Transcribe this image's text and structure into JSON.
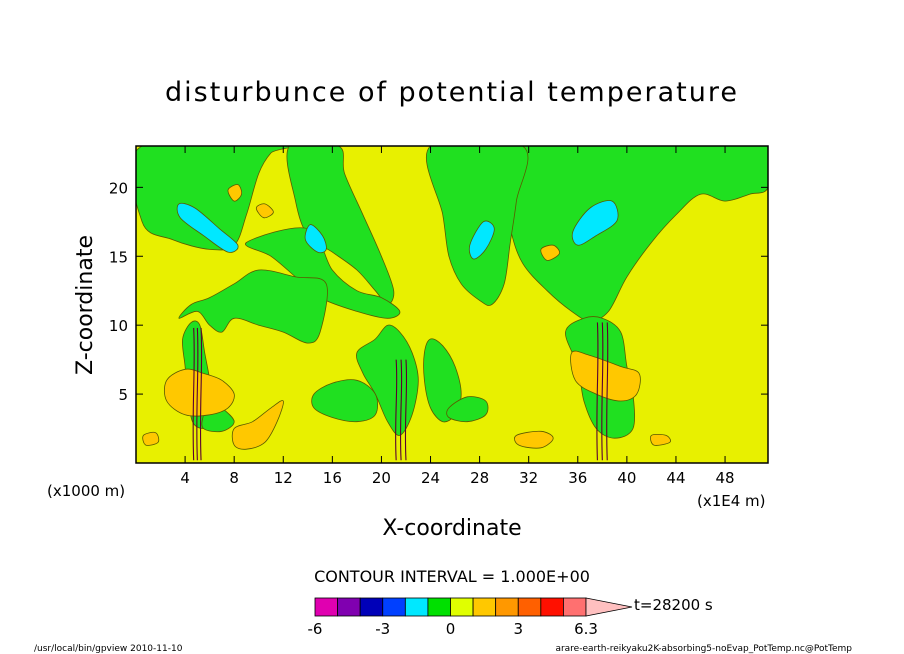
{
  "chart_data": {
    "type": "heatmap",
    "title": "disturbunce of potential temperature",
    "xlabel": "X-coordinate",
    "ylabel": "Z-coordinate",
    "x_unit_left": "(x1000 m)",
    "x_unit_right": "(x1E4 m)",
    "xlim": [
      0,
      51.5
    ],
    "ylim": [
      0,
      23
    ],
    "x_ticks": [
      4,
      8,
      12,
      16,
      20,
      24,
      28,
      32,
      36,
      40,
      44,
      48
    ],
    "y_ticks": [
      5,
      10,
      15,
      20
    ],
    "contour_interval_label": "CONTOUR INTERVAL = 1.000E+00",
    "time_label": "t=28200 s",
    "colorbar": {
      "colors": [
        "#e000b0",
        "#8000b0",
        "#0000b8",
        "#0040ff",
        "#00e8ff",
        "#00e000",
        "#e0ff00",
        "#ffc800",
        "#ff9800",
        "#ff6000",
        "#ff1000",
        "#ff7070",
        "#ffc0c0"
      ],
      "tick_labels": [
        "-6",
        "-3",
        "0",
        "3",
        "6.3"
      ]
    },
    "background_level_color": "#e8f000",
    "green_regions": [
      {
        "name": "upper-left-band",
        "pts": [
          [
            0.5,
            23
          ],
          [
            0.5,
            17.5
          ],
          [
            3,
            16.2
          ],
          [
            6,
            15.5
          ],
          [
            8,
            15.8
          ],
          [
            9,
            18
          ],
          [
            10,
            21
          ],
          [
            11,
            22.5
          ],
          [
            12,
            23
          ]
        ]
      },
      {
        "name": "upper-mid-left",
        "pts": [
          [
            12.5,
            23
          ],
          [
            13,
            19
          ],
          [
            14,
            16.5
          ],
          [
            16,
            15.3
          ],
          [
            18,
            14
          ],
          [
            19.5,
            12.5
          ],
          [
            20.5,
            11.5
          ],
          [
            21,
            12.5
          ],
          [
            20,
            15
          ],
          [
            18.5,
            18
          ],
          [
            17,
            21
          ],
          [
            16.5,
            23
          ]
        ]
      },
      {
        "name": "plume-left-arm",
        "pts": [
          [
            14,
            17
          ],
          [
            16,
            14
          ],
          [
            18,
            12.5
          ],
          [
            20,
            12
          ],
          [
            21.5,
            11
          ],
          [
            20.5,
            10.5
          ],
          [
            18,
            11
          ],
          [
            15,
            12
          ],
          [
            13,
            13.5
          ],
          [
            11,
            15
          ],
          [
            9,
            16
          ]
        ]
      },
      {
        "name": "upper-right-band",
        "pts": [
          [
            29,
            23
          ],
          [
            30,
            20
          ],
          [
            30.5,
            17
          ],
          [
            31.5,
            14.5
          ],
          [
            33.5,
            12.5
          ],
          [
            35.5,
            11
          ],
          [
            37,
            10.3
          ],
          [
            38.5,
            11
          ],
          [
            40,
            13.5
          ],
          [
            42,
            16
          ],
          [
            44,
            18
          ],
          [
            46,
            19.5
          ],
          [
            48,
            19
          ],
          [
            50,
            19.5
          ],
          [
            51.5,
            20
          ],
          [
            51.5,
            23
          ]
        ]
      },
      {
        "name": "upper-mid-right",
        "pts": [
          [
            24,
            23
          ],
          [
            25,
            18
          ],
          [
            25.5,
            15
          ],
          [
            26.5,
            13
          ],
          [
            28,
            11.8
          ],
          [
            29,
            11.5
          ],
          [
            30,
            13
          ],
          [
            30.5,
            16
          ],
          [
            31,
            19
          ],
          [
            31.5,
            23
          ]
        ]
      },
      {
        "name": "lower-left-cloud",
        "pts": [
          [
            3.5,
            10.5
          ],
          [
            5,
            11
          ],
          [
            6,
            10
          ],
          [
            7,
            9.5
          ],
          [
            8,
            10.5
          ],
          [
            10,
            10
          ],
          [
            12,
            9.5
          ],
          [
            14,
            8.7
          ],
          [
            15,
            9.5
          ],
          [
            15.5,
            13
          ],
          [
            13,
            13.5
          ],
          [
            10,
            14
          ],
          [
            8,
            13
          ],
          [
            6,
            12
          ],
          [
            4.5,
            11.5
          ]
        ]
      },
      {
        "name": "central-left-column",
        "pts": [
          [
            18,
            8
          ],
          [
            19.5,
            9
          ],
          [
            20.5,
            10
          ],
          [
            21.5,
            9.5
          ],
          [
            22.5,
            8
          ],
          [
            23,
            6
          ],
          [
            22.5,
            3.5
          ],
          [
            21.5,
            2
          ],
          [
            20.5,
            3
          ],
          [
            19.5,
            5
          ],
          [
            18.5,
            6.5
          ]
        ]
      },
      {
        "name": "central-right-column",
        "pts": [
          [
            24,
            9
          ],
          [
            25,
            8.5
          ],
          [
            26,
            7
          ],
          [
            26.5,
            5
          ],
          [
            26,
            3.5
          ],
          [
            25,
            3
          ],
          [
            24,
            4
          ],
          [
            23.5,
            6
          ],
          [
            23.5,
            8
          ]
        ]
      },
      {
        "name": "lower-green-blob-1",
        "pts": [
          [
            14.5,
            5
          ],
          [
            16,
            5.8
          ],
          [
            18,
            6
          ],
          [
            19.5,
            5
          ],
          [
            19.5,
            3.5
          ],
          [
            18,
            3
          ],
          [
            16,
            3.3
          ],
          [
            14.5,
            4
          ]
        ]
      },
      {
        "name": "lower-green-blob-2",
        "pts": [
          [
            25.5,
            4
          ],
          [
            27,
            4.8
          ],
          [
            28.5,
            4.5
          ],
          [
            28.5,
            3.5
          ],
          [
            27,
            3
          ],
          [
            25.5,
            3.3
          ]
        ]
      },
      {
        "name": "right-column",
        "pts": [
          [
            35,
            9.5
          ],
          [
            36.5,
            10.5
          ],
          [
            38,
            10.5
          ],
          [
            39.5,
            9.5
          ],
          [
            40,
            7
          ],
          [
            40.5,
            5
          ],
          [
            40.5,
            2.5
          ],
          [
            39,
            1.8
          ],
          [
            37.5,
            2.5
          ],
          [
            36.5,
            4.5
          ],
          [
            36,
            7
          ]
        ]
      },
      {
        "name": "left-column",
        "pts": [
          [
            3.8,
            9
          ],
          [
            4.5,
            10.2
          ],
          [
            5.2,
            10
          ],
          [
            5.6,
            8
          ],
          [
            6.2,
            5
          ],
          [
            6.3,
            3
          ],
          [
            5.5,
            2.5
          ],
          [
            4.6,
            3
          ],
          [
            4.2,
            5
          ],
          [
            4,
            7
          ]
        ]
      },
      {
        "name": "low-level-strip",
        "pts": [
          [
            5.5,
            2.5
          ],
          [
            7,
            2.3
          ],
          [
            8,
            3
          ],
          [
            7,
            4
          ],
          [
            6,
            4.5
          ],
          [
            5.5,
            3.5
          ]
        ]
      }
    ],
    "cyan_regions": [
      {
        "name": "upper-left-blue",
        "pts": [
          [
            3.5,
            18.8
          ],
          [
            4.8,
            18.5
          ],
          [
            6.8,
            17
          ],
          [
            8.3,
            15.8
          ],
          [
            7.5,
            15.3
          ],
          [
            5.5,
            16.5
          ],
          [
            3.6,
            17.8
          ]
        ]
      },
      {
        "name": "upper-right-blue",
        "pts": [
          [
            37,
            18.5
          ],
          [
            38.8,
            19
          ],
          [
            39.2,
            17.6
          ],
          [
            37.5,
            16.5
          ],
          [
            36,
            15.8
          ],
          [
            35.6,
            16.8
          ]
        ]
      },
      {
        "name": "mid-right-blue",
        "pts": [
          [
            28.3,
            17.5
          ],
          [
            29.2,
            17
          ],
          [
            28.5,
            15.5
          ],
          [
            27.5,
            14.8
          ],
          [
            27.2,
            15.8
          ]
        ]
      },
      {
        "name": "mid-left-blue",
        "pts": [
          [
            14.2,
            17.3
          ],
          [
            15.2,
            16.5
          ],
          [
            15.5,
            15.5
          ],
          [
            14.8,
            15.3
          ],
          [
            13.8,
            16.2
          ]
        ]
      }
    ],
    "orange_regions": [
      {
        "name": "left-low-orange",
        "pts": [
          [
            2.5,
            6
          ],
          [
            4,
            6.8
          ],
          [
            5.5,
            6.5
          ],
          [
            7,
            6
          ],
          [
            8,
            5
          ],
          [
            7.5,
            4
          ],
          [
            6,
            3.5
          ],
          [
            4,
            3.5
          ],
          [
            2.5,
            4.5
          ]
        ]
      },
      {
        "name": "lower-left-warm",
        "pts": [
          [
            8,
            2.5
          ],
          [
            9.5,
            3
          ],
          [
            11,
            4
          ],
          [
            12,
            4.5
          ],
          [
            11.5,
            3
          ],
          [
            10.5,
            1.5
          ],
          [
            9,
            1
          ],
          [
            8,
            1.3
          ]
        ]
      },
      {
        "name": "right-low-orange",
        "pts": [
          [
            35.5,
            8
          ],
          [
            37,
            7.8
          ],
          [
            39.5,
            7
          ],
          [
            41,
            6.5
          ],
          [
            40.8,
            5
          ],
          [
            39.5,
            4.5
          ],
          [
            37.5,
            5
          ],
          [
            35.8,
            6
          ]
        ]
      },
      {
        "name": "right-bottom-warm",
        "pts": [
          [
            31,
            2
          ],
          [
            33,
            2.3
          ],
          [
            34,
            1.8
          ],
          [
            33,
            1.1
          ],
          [
            31.2,
            1.3
          ]
        ]
      },
      {
        "name": "upper-left-orange-1",
        "pts": [
          [
            7.5,
            19.8
          ],
          [
            8.3,
            20.2
          ],
          [
            8.6,
            19.5
          ],
          [
            8,
            19
          ]
        ]
      },
      {
        "name": "upper-left-orange-2",
        "pts": [
          [
            9.8,
            18.5
          ],
          [
            10.5,
            18.8
          ],
          [
            11.2,
            18.2
          ],
          [
            10.4,
            17.8
          ]
        ]
      },
      {
        "name": "mid-right-orange",
        "pts": [
          [
            33,
            15.5
          ],
          [
            34,
            15.8
          ],
          [
            34.5,
            15.2
          ],
          [
            33.5,
            14.7
          ]
        ]
      },
      {
        "name": "lower-right-orange",
        "pts": [
          [
            42,
            2
          ],
          [
            43.2,
            2
          ],
          [
            43.5,
            1.5
          ],
          [
            42.2,
            1.3
          ]
        ]
      },
      {
        "name": "far-left-orange",
        "pts": [
          [
            0.6,
            2
          ],
          [
            1.6,
            2.2
          ],
          [
            1.8,
            1.5
          ],
          [
            0.8,
            1.3
          ]
        ]
      }
    ],
    "dark_contour_lines": [
      {
        "name": "left-column-lines",
        "x": [
          4.7,
          5.0,
          5.3
        ],
        "ybottom": 0.2,
        "ytop": 9.8
      },
      {
        "name": "central-column-lines",
        "x": [
          21.2,
          21.6,
          22.0
        ],
        "ybottom": 0.2,
        "ytop": 7.5
      },
      {
        "name": "right-column-lines",
        "x": [
          37.6,
          38.0,
          38.4
        ],
        "ybottom": 0.2,
        "ytop": 10.2
      }
    ]
  },
  "footer": {
    "program_info": "/usr/local/bin/gpview  2010-11-10",
    "file_info": "arare-earth-reikyaku2K-absorbing5-noEvap_PotTemp.nc@PotTemp"
  }
}
